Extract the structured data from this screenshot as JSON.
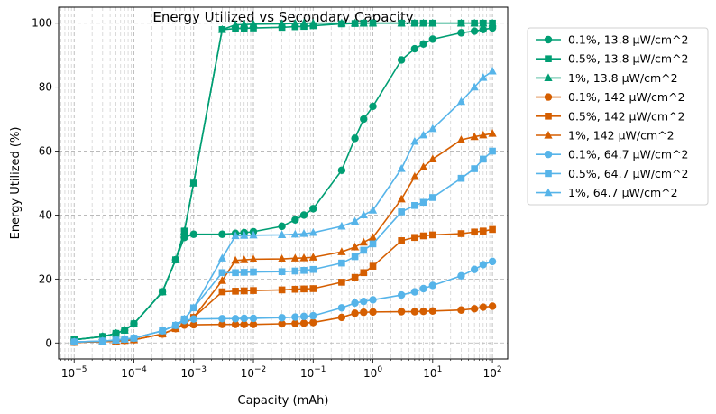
{
  "chart_data": {
    "type": "line",
    "title": "Energy Utilized vs Secondary Capacity",
    "xlabel": "Capacity (mAh)",
    "ylabel": "Energy Utilized (%)",
    "xscale": "log",
    "xlim": [
      5.5e-06,
      180
    ],
    "ylim": [
      -5,
      105
    ],
    "xticks": [
      {
        "value": 1e-05,
        "base": "10",
        "exp": "−5"
      },
      {
        "value": 0.0001,
        "base": "10",
        "exp": "−4"
      },
      {
        "value": 0.001,
        "base": "10",
        "exp": "−3"
      },
      {
        "value": 0.01,
        "base": "10",
        "exp": "−2"
      },
      {
        "value": 0.1,
        "base": "10",
        "exp": "−1"
      },
      {
        "value": 1,
        "base": "10",
        "exp": "0"
      },
      {
        "value": 10,
        "base": "10",
        "exp": "1"
      },
      {
        "value": 100,
        "base": "10",
        "exp": "2"
      }
    ],
    "yticks": [
      0,
      20,
      40,
      60,
      80,
      100
    ],
    "grid": true,
    "legend_position": "outside-right",
    "series": [
      {
        "name": "0.1%, 13.8 μW/cm^2",
        "color": "#009E73",
        "marker": "circle",
        "x": [
          1e-05,
          3e-05,
          5e-05,
          7e-05,
          0.0001,
          0.0003,
          0.0005,
          0.0007,
          0.001,
          0.003,
          0.005,
          0.007,
          0.01,
          0.03,
          0.05,
          0.07,
          0.1,
          0.3,
          0.5,
          0.7,
          1,
          3,
          5,
          7,
          10,
          30,
          50,
          70,
          100
        ],
        "y": [
          1,
          2,
          3,
          4,
          6,
          16,
          26,
          33,
          34,
          34,
          34.3,
          34.5,
          34.8,
          36.5,
          38.5,
          40,
          42,
          54,
          64,
          70,
          74,
          88.5,
          92,
          93.5,
          95,
          97,
          97.5,
          98,
          98.5
        ]
      },
      {
        "name": "0.5%, 13.8 μW/cm^2",
        "color": "#009E73",
        "marker": "square",
        "x": [
          1e-05,
          3e-05,
          5e-05,
          7e-05,
          0.0001,
          0.0003,
          0.0005,
          0.0007,
          0.001,
          0.003,
          0.005,
          0.007,
          0.01,
          0.03,
          0.05,
          0.07,
          0.1,
          0.3,
          0.5,
          0.7,
          1,
          3,
          5,
          7,
          10,
          30,
          50,
          70,
          100
        ],
        "y": [
          1,
          2,
          3,
          4,
          6,
          16,
          26,
          35,
          50,
          98,
          98.3,
          98.4,
          98.5,
          98.7,
          98.9,
          99,
          99.2,
          99.8,
          99.9,
          100,
          100,
          100,
          100,
          100,
          100,
          100,
          100,
          100,
          100
        ]
      },
      {
        "name": "1%, 13.8 μW/cm^2",
        "color": "#009E73",
        "marker": "triangle",
        "x": [
          1e-05,
          3e-05,
          5e-05,
          7e-05,
          0.0001,
          0.0003,
          0.0005,
          0.0007,
          0.001,
          0.003,
          0.005,
          0.007,
          0.01,
          0.03,
          0.05,
          0.07,
          0.1,
          0.3,
          0.5,
          0.7,
          1,
          3,
          5,
          7,
          10,
          30,
          50,
          70,
          100
        ],
        "y": [
          1,
          2,
          3,
          4,
          6,
          16,
          26,
          35,
          50,
          98,
          99.5,
          99.6,
          99.7,
          99.8,
          99.9,
          100,
          100,
          100,
          100,
          100,
          100,
          100,
          100,
          100,
          100,
          100,
          100,
          100,
          100
        ]
      },
      {
        "name": "0.1%, 142 μW/cm^2",
        "color": "#D55E00",
        "marker": "circle",
        "x": [
          1e-05,
          3e-05,
          5e-05,
          7e-05,
          0.0001,
          0.0003,
          0.0005,
          0.0007,
          0.001,
          0.003,
          0.005,
          0.007,
          0.01,
          0.03,
          0.05,
          0.07,
          0.1,
          0.3,
          0.5,
          0.7,
          1,
          3,
          5,
          7,
          10,
          30,
          50,
          70,
          100
        ],
        "y": [
          0.2,
          0.4,
          0.6,
          0.8,
          1,
          2.8,
          4.5,
          5.6,
          5.7,
          5.8,
          5.8,
          5.8,
          5.8,
          6,
          6.1,
          6.2,
          6.4,
          8,
          9.3,
          9.6,
          9.7,
          9.8,
          9.8,
          9.9,
          10,
          10.3,
          10.7,
          11.2,
          11.5
        ]
      },
      {
        "name": "0.5%, 142 μW/cm^2",
        "color": "#D55E00",
        "marker": "square",
        "x": [
          1e-05,
          3e-05,
          5e-05,
          7e-05,
          0.0001,
          0.0003,
          0.0005,
          0.0007,
          0.001,
          0.003,
          0.005,
          0.007,
          0.01,
          0.03,
          0.05,
          0.07,
          0.1,
          0.3,
          0.5,
          0.7,
          1,
          3,
          5,
          7,
          10,
          30,
          50,
          70,
          100
        ],
        "y": [
          0.2,
          0.4,
          0.6,
          0.8,
          1,
          2.8,
          4.5,
          6,
          8,
          16,
          16.2,
          16.3,
          16.4,
          16.6,
          16.8,
          16.9,
          17,
          19,
          20.5,
          22,
          24,
          32,
          33,
          33.5,
          33.8,
          34.2,
          34.7,
          35,
          35.5
        ]
      },
      {
        "name": "1%, 142 μW/cm^2",
        "color": "#D55E00",
        "marker": "triangle",
        "x": [
          1e-05,
          3e-05,
          5e-05,
          7e-05,
          0.0001,
          0.0003,
          0.0005,
          0.0007,
          0.001,
          0.003,
          0.005,
          0.007,
          0.01,
          0.03,
          0.05,
          0.07,
          0.1,
          0.3,
          0.5,
          0.7,
          1,
          3,
          5,
          7,
          10,
          30,
          50,
          70,
          100
        ],
        "y": [
          0.2,
          0.4,
          0.6,
          0.8,
          1,
          2.8,
          4.5,
          6,
          8,
          19.5,
          25.8,
          26,
          26.2,
          26.3,
          26.5,
          26.6,
          26.8,
          28.5,
          30,
          31.5,
          33,
          45,
          52,
          55,
          57.5,
          63.5,
          64.5,
          65,
          65.5
        ]
      },
      {
        "name": "0.1%, 64.7 μW/cm^2",
        "color": "#56B4E9",
        "marker": "circle",
        "x": [
          1e-05,
          3e-05,
          5e-05,
          7e-05,
          0.0001,
          0.0003,
          0.0005,
          0.0007,
          0.001,
          0.003,
          0.005,
          0.007,
          0.01,
          0.03,
          0.05,
          0.07,
          0.1,
          0.3,
          0.5,
          0.7,
          1,
          3,
          5,
          7,
          10,
          30,
          50,
          70,
          100
        ],
        "y": [
          0.3,
          0.6,
          0.9,
          1.2,
          1.5,
          3.8,
          5.5,
          7,
          7.5,
          7.6,
          7.6,
          7.7,
          7.7,
          7.9,
          8.1,
          8.3,
          8.5,
          11,
          12.5,
          13,
          13.5,
          15,
          16,
          17,
          18,
          21,
          23,
          24.5,
          25.5
        ]
      },
      {
        "name": "0.5%, 64.7 μW/cm^2",
        "color": "#56B4E9",
        "marker": "square",
        "x": [
          1e-05,
          3e-05,
          5e-05,
          7e-05,
          0.0001,
          0.0003,
          0.0005,
          0.0007,
          0.001,
          0.003,
          0.005,
          0.007,
          0.01,
          0.03,
          0.05,
          0.07,
          0.1,
          0.3,
          0.5,
          0.7,
          1,
          3,
          5,
          7,
          10,
          30,
          50,
          70,
          100
        ],
        "y": [
          0.3,
          0.6,
          0.9,
          1.2,
          1.5,
          3.8,
          5.5,
          7.5,
          11,
          22,
          22,
          22.1,
          22.2,
          22.3,
          22.5,
          22.7,
          23,
          25,
          27,
          29,
          31,
          41,
          43,
          44,
          45.5,
          51.5,
          54.5,
          57.5,
          60
        ]
      },
      {
        "name": "1%, 64.7 μW/cm^2",
        "color": "#56B4E9",
        "marker": "triangle",
        "x": [
          1e-05,
          3e-05,
          5e-05,
          7e-05,
          0.0001,
          0.0003,
          0.0005,
          0.0007,
          0.001,
          0.003,
          0.005,
          0.007,
          0.01,
          0.03,
          0.05,
          0.07,
          0.1,
          0.3,
          0.5,
          0.7,
          1,
          3,
          5,
          7,
          10,
          30,
          50,
          70,
          100
        ],
        "y": [
          0.3,
          0.6,
          0.9,
          1.2,
          1.5,
          3.8,
          5.5,
          7.5,
          11,
          26.5,
          33.5,
          33.6,
          33.7,
          33.8,
          34,
          34.2,
          34.5,
          36.5,
          38,
          40,
          41.5,
          54.5,
          63,
          65,
          67,
          75.5,
          80,
          83,
          85
        ]
      }
    ]
  }
}
